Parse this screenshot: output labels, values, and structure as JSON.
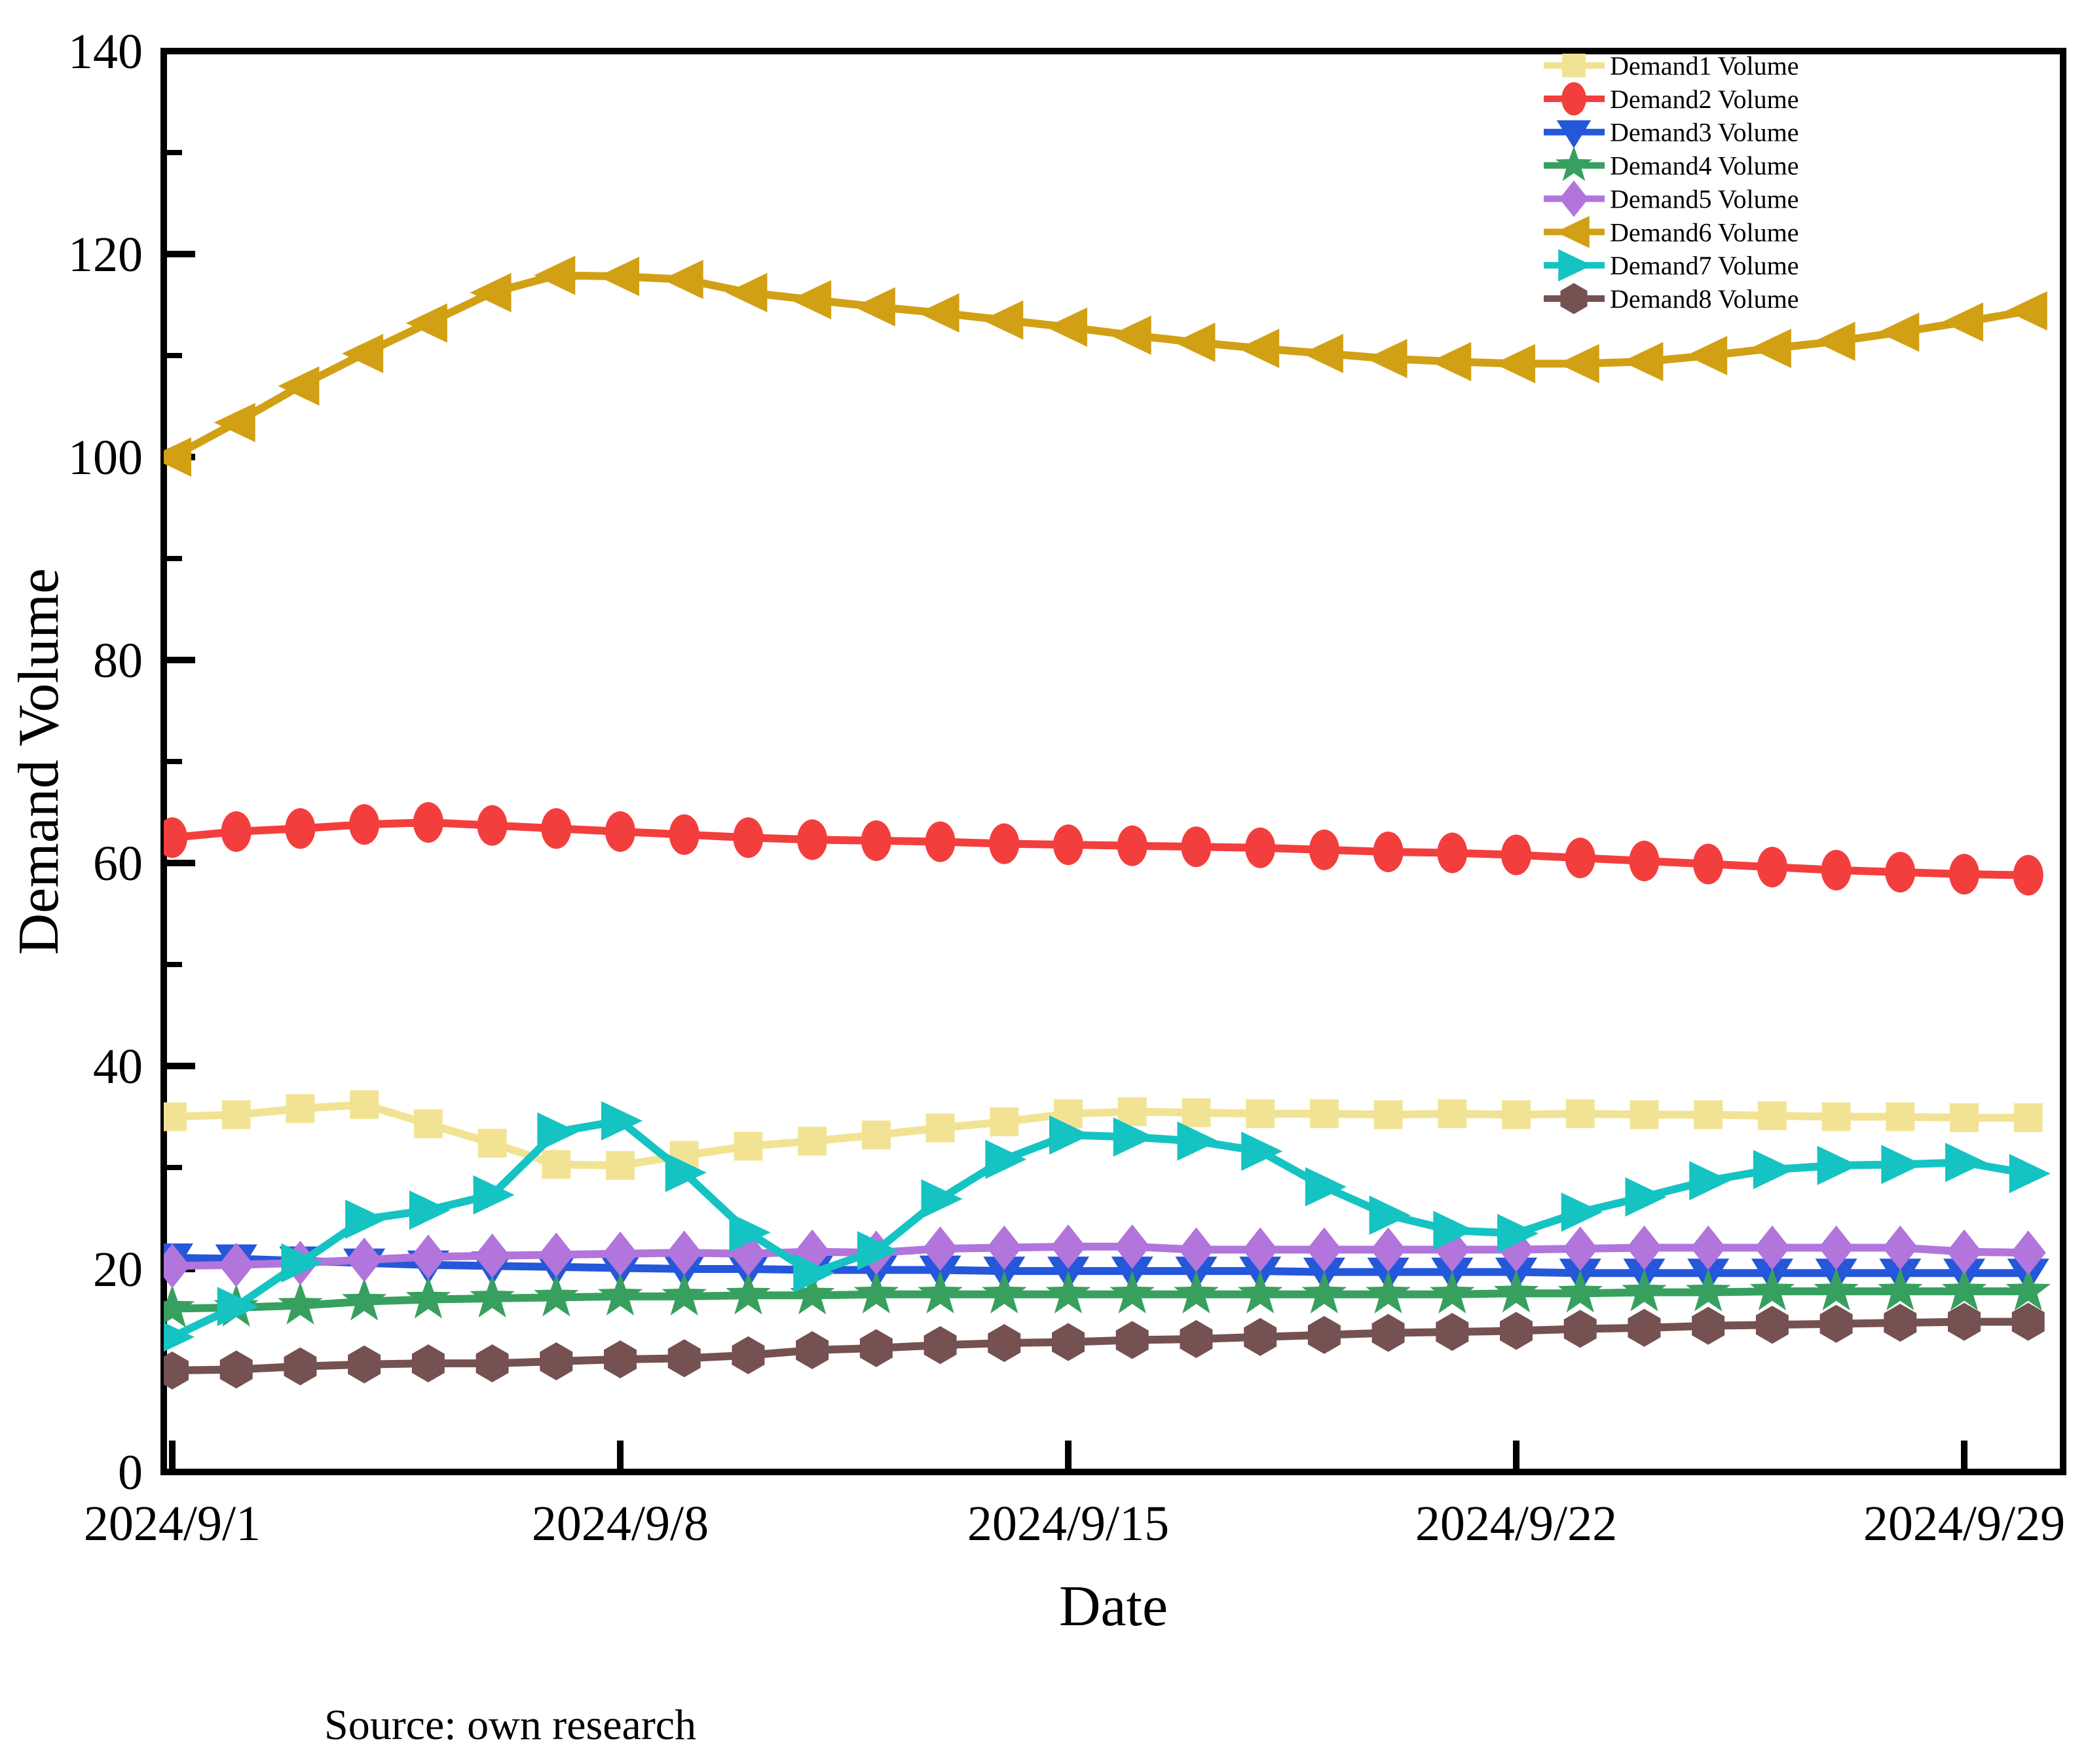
{
  "source_note": "Source: own research",
  "colors": {
    "axis": "#000000",
    "background": "#ffffff"
  },
  "chart_data": {
    "type": "line",
    "title": "",
    "xlabel": "Date",
    "ylabel": "Demand Volume",
    "ylim": [
      0,
      140
    ],
    "x_range_days": [
      1,
      30
    ],
    "grid": false,
    "legend_position": "top-right",
    "y_tick_labels": [
      "0",
      "20",
      "40",
      "60",
      "80",
      "100",
      "120",
      "140"
    ],
    "y_major_ticks": [
      0,
      20,
      40,
      60,
      80,
      100,
      120,
      140
    ],
    "y_minor_ticks": [
      10,
      30,
      50,
      70,
      90,
      110,
      130
    ],
    "x_tick_labels": [
      "2024/9/1",
      "2024/9/8",
      "2024/9/15",
      "2024/9/22",
      "2024/9/29"
    ],
    "x_tick_days": [
      1,
      8,
      15,
      22,
      29
    ],
    "dates": [
      "2024/9/1",
      "2024/9/2",
      "2024/9/3",
      "2024/9/4",
      "2024/9/5",
      "2024/9/6",
      "2024/9/7",
      "2024/9/8",
      "2024/9/9",
      "2024/9/10",
      "2024/9/11",
      "2024/9/12",
      "2024/9/13",
      "2024/9/14",
      "2024/9/15",
      "2024/9/16",
      "2024/9/17",
      "2024/9/18",
      "2024/9/19",
      "2024/9/20",
      "2024/9/21",
      "2024/9/22",
      "2024/9/23",
      "2024/9/24",
      "2024/9/25",
      "2024/9/26",
      "2024/9/27",
      "2024/9/28",
      "2024/9/29",
      "2024/9/30"
    ],
    "x_days": [
      1,
      2,
      3,
      4,
      5,
      6,
      7,
      8,
      9,
      10,
      11,
      12,
      13,
      14,
      15,
      16,
      17,
      18,
      19,
      20,
      21,
      22,
      23,
      24,
      25,
      26,
      27,
      28,
      29,
      30
    ],
    "series": [
      {
        "name": "Demand1 Volume",
        "marker": "square",
        "color": "#F2E394",
        "values": [
          35.0,
          35.2,
          35.8,
          36.2,
          34.3,
          32.4,
          30.3,
          30.2,
          31.2,
          32.1,
          32.6,
          33.2,
          33.9,
          34.5,
          35.3,
          35.5,
          35.4,
          35.3,
          35.3,
          35.2,
          35.3,
          35.2,
          35.3,
          35.2,
          35.2,
          35.1,
          35.0,
          35.0,
          34.9,
          34.9
        ]
      },
      {
        "name": "Demand2 Volume",
        "marker": "circle",
        "color": "#F33E3E",
        "values": [
          62.5,
          63.1,
          63.4,
          63.8,
          64.0,
          63.7,
          63.4,
          63.1,
          62.8,
          62.5,
          62.3,
          62.2,
          62.1,
          61.9,
          61.8,
          61.7,
          61.6,
          61.5,
          61.3,
          61.1,
          61.0,
          60.8,
          60.5,
          60.2,
          59.9,
          59.6,
          59.3,
          59.1,
          58.9,
          58.8
        ]
      },
      {
        "name": "Demand3 Volume",
        "marker": "triangle-down",
        "color": "#2457D9",
        "values": [
          21.1,
          21.0,
          20.8,
          20.6,
          20.4,
          20.3,
          20.2,
          20.1,
          20.0,
          20.0,
          19.9,
          19.9,
          19.9,
          19.8,
          19.8,
          19.8,
          19.8,
          19.8,
          19.7,
          19.7,
          19.7,
          19.7,
          19.6,
          19.6,
          19.6,
          19.6,
          19.6,
          19.6,
          19.6,
          19.6
        ]
      },
      {
        "name": "Demand4 Volume",
        "marker": "star",
        "color": "#38A05F",
        "values": [
          16.1,
          16.2,
          16.4,
          16.8,
          17.0,
          17.1,
          17.2,
          17.3,
          17.3,
          17.4,
          17.4,
          17.5,
          17.5,
          17.5,
          17.5,
          17.5,
          17.5,
          17.5,
          17.5,
          17.5,
          17.5,
          17.6,
          17.6,
          17.7,
          17.7,
          17.8,
          17.8,
          17.8,
          17.8,
          17.8
        ]
      },
      {
        "name": "Demand5 Volume",
        "marker": "diamond",
        "color": "#B175DC",
        "values": [
          20.3,
          20.4,
          20.6,
          20.9,
          21.2,
          21.3,
          21.4,
          21.5,
          21.6,
          21.5,
          21.7,
          21.6,
          22.0,
          22.1,
          22.2,
          22.2,
          21.9,
          21.9,
          21.9,
          21.9,
          21.9,
          21.9,
          22.0,
          22.1,
          22.1,
          22.1,
          22.1,
          22.1,
          21.7,
          21.6
        ]
      },
      {
        "name": "Demand6 Volume",
        "marker": "triangle-left",
        "color": "#D2A014",
        "values": [
          100.0,
          103.4,
          107.0,
          110.2,
          113.2,
          116.2,
          117.9,
          117.8,
          117.5,
          116.2,
          115.5,
          114.8,
          114.2,
          113.5,
          112.8,
          112.0,
          111.3,
          110.7,
          110.2,
          109.7,
          109.4,
          109.2,
          109.2,
          109.4,
          110.0,
          110.7,
          111.4,
          112.3,
          113.3,
          114.4
        ]
      },
      {
        "name": "Demand7 Volume",
        "marker": "triangle-right",
        "color": "#16C3C3",
        "values": [
          13.3,
          16.3,
          20.6,
          24.9,
          25.8,
          27.3,
          33.5,
          34.6,
          29.5,
          23.6,
          19.6,
          21.8,
          26.9,
          30.8,
          33.2,
          33.0,
          32.6,
          31.6,
          28.1,
          25.3,
          23.8,
          23.5,
          25.6,
          27.1,
          28.7,
          29.8,
          30.2,
          30.3,
          30.5,
          29.4
        ]
      },
      {
        "name": "Demand8 Volume",
        "marker": "hexagon",
        "color": "#755151",
        "values": [
          10.0,
          10.1,
          10.4,
          10.6,
          10.7,
          10.7,
          10.9,
          11.1,
          11.2,
          11.5,
          12.0,
          12.2,
          12.5,
          12.7,
          12.8,
          13.0,
          13.1,
          13.3,
          13.5,
          13.7,
          13.8,
          13.9,
          14.1,
          14.2,
          14.4,
          14.5,
          14.6,
          14.7,
          14.8,
          14.8
        ]
      }
    ]
  }
}
